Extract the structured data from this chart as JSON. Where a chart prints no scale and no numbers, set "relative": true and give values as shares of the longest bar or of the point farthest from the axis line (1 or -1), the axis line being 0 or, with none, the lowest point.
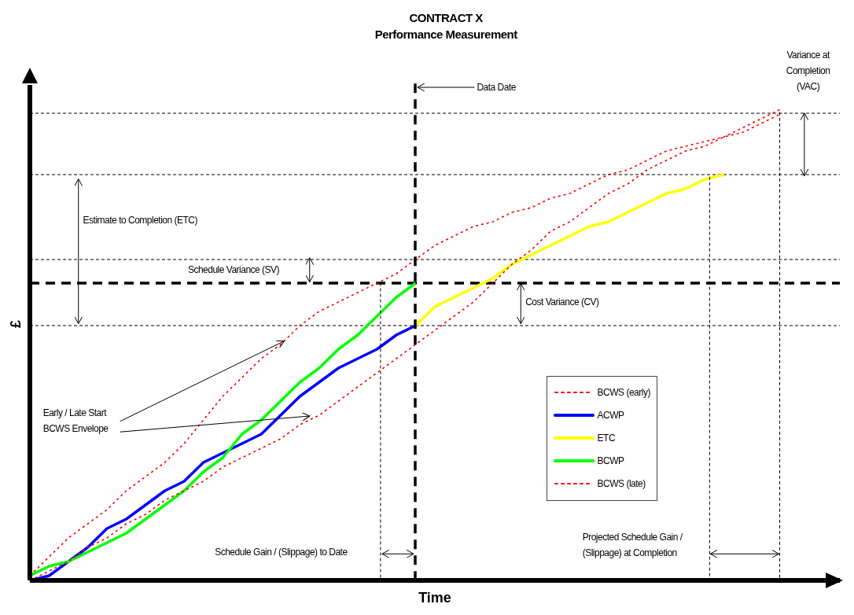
{
  "chart_data": {
    "type": "line",
    "title": "CONTRACT X",
    "subtitle": "Performance Measurement",
    "xlabel": "Time",
    "ylabel": "£",
    "relative": true,
    "legend": "right",
    "grid": false,
    "categories": [
      null,
      null,
      null,
      null,
      null,
      null,
      null,
      null,
      null,
      null,
      null,
      null,
      null,
      null,
      null,
      null,
      null,
      null,
      null,
      null,
      null,
      null,
      null,
      null,
      null,
      null,
      null,
      null,
      null,
      null,
      null,
      null,
      null,
      null,
      null,
      null,
      null,
      null,
      null,
      null,
      null,
      null,
      null
    ],
    "series": [
      {
        "name": "BCWS (early)",
        "color": "#ff0000",
        "line_style": "dotted",
        "values": [
          0.01,
          0.05,
          0.09,
          0.12,
          0.15,
          0.19,
          0.22,
          0.25,
          0.29,
          0.34,
          0.39,
          0.43,
          0.47,
          0.5,
          0.54,
          0.57,
          0.59,
          0.61,
          0.63,
          0.65,
          0.68,
          0.71,
          0.73,
          0.75,
          0.76,
          0.78,
          0.79,
          0.81,
          0.82,
          0.84,
          0.86,
          0.87,
          0.89,
          0.91,
          0.92,
          0.93,
          0.94,
          0.96,
          0.98,
          1,
          null,
          null,
          null
        ]
      },
      {
        "name": "ACWP",
        "color": "#0000ff",
        "line_style": "solid",
        "values": [
          0,
          0.01,
          0.04,
          0.07,
          0.11,
          0.13,
          0.16,
          0.19,
          0.21,
          0.25,
          0.27,
          0.29,
          0.31,
          0.35,
          0.39,
          0.42,
          0.45,
          0.47,
          0.49,
          0.52,
          0.54,
          null,
          null,
          null,
          null,
          null,
          null,
          null,
          null,
          null,
          null,
          null,
          null,
          null,
          null,
          null,
          null,
          null,
          null,
          null,
          null,
          null,
          null
        ]
      },
      {
        "name": "ETC",
        "color": "#ffff00",
        "line_style": "solid",
        "values": [
          null,
          null,
          null,
          null,
          null,
          null,
          null,
          null,
          null,
          null,
          null,
          null,
          null,
          null,
          null,
          null,
          null,
          null,
          null,
          null,
          0.54,
          0.58,
          0.6,
          0.62,
          0.64,
          0.67,
          0.69,
          0.71,
          0.73,
          0.75,
          0.76,
          0.78,
          0.8,
          0.82,
          0.83,
          0.85,
          0.86,
          null,
          null,
          null,
          null,
          null,
          null
        ]
      },
      {
        "name": "BCWP",
        "color": "#00ff00",
        "line_style": "solid",
        "values": [
          0.01,
          0.03,
          0.04,
          0.06,
          0.08,
          0.1,
          0.13,
          0.16,
          0.19,
          0.23,
          0.26,
          0.31,
          0.34,
          0.38,
          0.42,
          0.45,
          0.49,
          0.52,
          0.56,
          0.6,
          0.63,
          null,
          null,
          null,
          null,
          null,
          null,
          null,
          null,
          null,
          null,
          null,
          null,
          null,
          null,
          null,
          null,
          null,
          null,
          null,
          null,
          null,
          null
        ]
      },
      {
        "name": "BCWS (late)",
        "color": "#ff0000",
        "line_style": "dotted",
        "values": [
          0,
          0.02,
          0.04,
          0.07,
          0.09,
          0.12,
          0.14,
          0.17,
          0.19,
          0.21,
          0.24,
          0.26,
          0.28,
          0.3,
          0.33,
          0.35,
          0.38,
          0.41,
          0.44,
          0.47,
          0.5,
          0.53,
          0.56,
          0.59,
          0.63,
          0.67,
          0.7,
          0.74,
          0.76,
          0.79,
          0.82,
          0.84,
          0.87,
          0.89,
          0.91,
          0.92,
          0.94,
          0.95,
          0.97,
          0.99,
          null,
          null,
          null
        ]
      }
    ],
    "ref_lines": [
      {
        "axis": "y",
        "value": 0.99,
        "color": "#000000",
        "line_style": "dotted"
      },
      {
        "axis": "y",
        "value": 0.86,
        "color": "#000000",
        "line_style": "dotted"
      },
      {
        "axis": "y",
        "value": 0.68,
        "color": "#000000",
        "line_style": "dotted"
      },
      {
        "axis": "y",
        "value": 0.63,
        "color": "#000000",
        "line_style": "dashed"
      },
      {
        "axis": "y",
        "value": 0.54,
        "color": "#000000",
        "line_style": "dotted"
      }
    ],
    "annotations": [
      "Variance at Completion (VAC)",
      "Estimate to Completion (ETC)",
      "Schedule Variance (SV)",
      "Cost Variance (CV)",
      "Early / Late Start BCWS Envelope",
      "Schedule Gain / (Slippage) to Date",
      "Projected Schedule Gain / (Slippage) at Completion",
      "Data Date"
    ]
  }
}
